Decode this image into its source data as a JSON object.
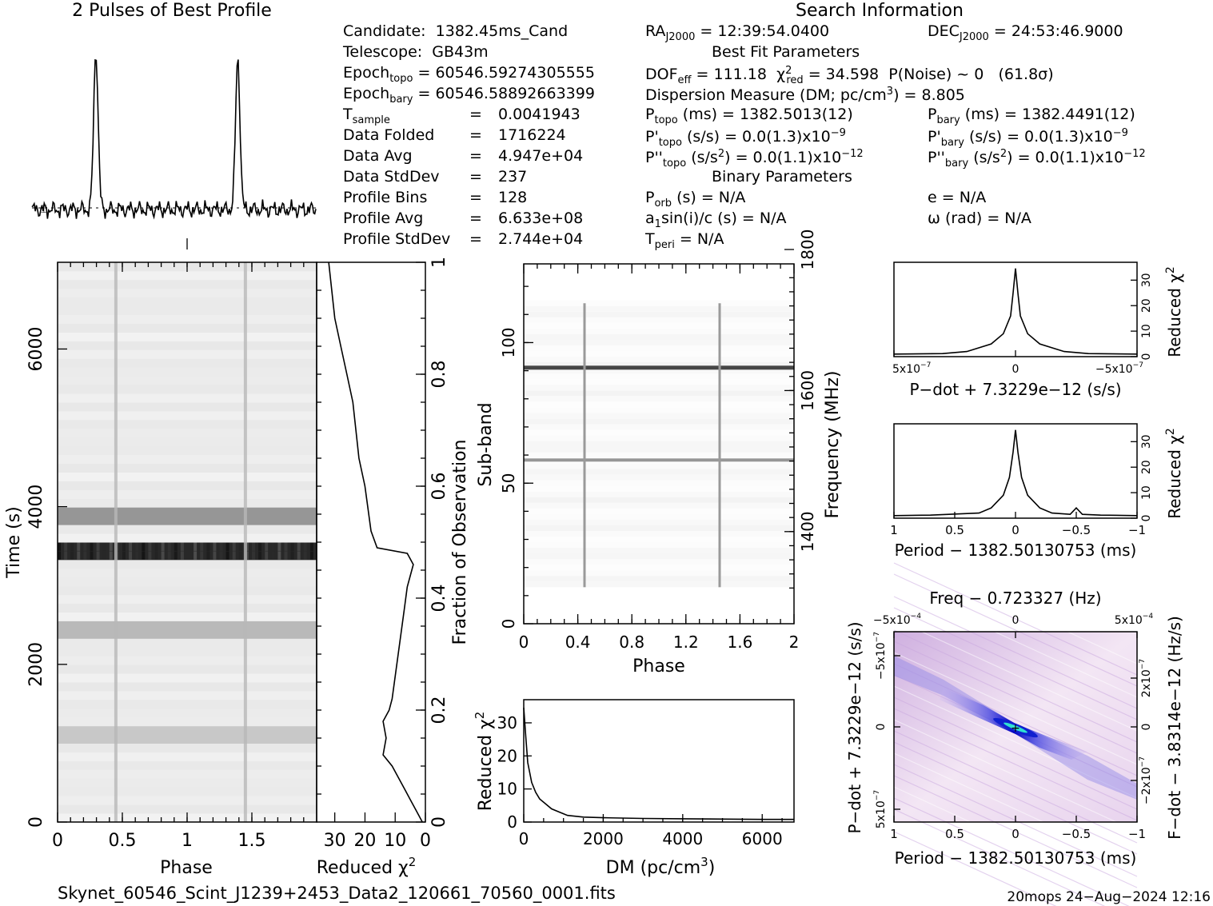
{
  "profile_title": "2 Pulses of Best Profile",
  "search_title": "Search Information",
  "candidate": {
    "candidate_label": "Candidate:",
    "candidate": "1382.45ms_Cand",
    "telescope_label": "Telescope:",
    "telescope": "GB43m",
    "epoch_topo": "60546.59274305555",
    "epoch_bary": "60546.58892663399",
    "t_sample": "0.0041943",
    "data_folded": "1716224",
    "data_avg": "4.947e+04",
    "data_stddev": "237",
    "profile_bins": "128",
    "profile_avg": "6.633e+08",
    "profile_stddev": "2.744e+04",
    "labels": {
      "epoch": "Epoch",
      "topo": "topo",
      "bary": "bary",
      "t": "T",
      "sample": "sample",
      "data_folded": "Data Folded",
      "data_avg": "Data Avg",
      "data_stddev": "Data StdDev",
      "profile_bins": "Profile Bins",
      "profile_avg": "Profile Avg",
      "profile_stddev": "Profile StdDev",
      "equals": "="
    }
  },
  "search": {
    "ra": "RA",
    "dec": "DEC",
    "j2000": "J2000",
    "ra_value": "= 12:39:54.0400",
    "dec_value": "= 24:53:46.9000",
    "best_fit_heading": "Best Fit Parameters",
    "dof": "DOF",
    "eff": "eff",
    "dof_value": "= 111.18",
    "chi": "χ",
    "red": "red",
    "chi2_value": "= 34.598",
    "pnoise": "P(Noise) ~ 0",
    "sigma": "(61.8σ)",
    "dm_text": "Dispersion Measure (DM; pc/cm",
    "dm_value": ") = 8.805",
    "p_topo": "(ms) =  1382.5013(12)",
    "p_bary": "(ms) =  1382.4491(12)",
    "pd_topo": "(s/s) = 0.0(1.3)x10",
    "pd_bary": "(s/s) = 0.0(1.3)x10",
    "pd_exp": "−9",
    "pdd_topo": "(s/s",
    "pdd_value": ") = 0.0(1.1)x10",
    "pdd_exp": "−12",
    "binary_heading": "Binary Parameters",
    "porb": "(s) = N/A",
    "a1sini": "sin(i)/c (s) = N/A",
    "tperi": "= N/A",
    "ecc": "e = N/A",
    "omega": "ω (rad) = N/A",
    "sym_p": "P",
    "sym_pd": "P'",
    "sym_pdd": "P''",
    "sym_a": "a",
    "one": "1",
    "two": "2",
    "three": "3",
    "orb": "orb",
    "peri": "peri",
    "t_sym": "T"
  },
  "footer": {
    "filename": "Skynet_60546_Scint_J1239+2453_Data2_120661_70560_0001.fits",
    "stamp": "20mops 24−Aug−2024 12:16"
  },
  "chart_data": [
    {
      "id": "pulse-profile",
      "type": "line",
      "title": "2 Pulses of Best Profile",
      "xlabel": "",
      "ylabel": "",
      "phase_range": [
        0,
        2
      ],
      "peaks": [
        {
          "phase": 0.45,
          "amplitude": 1.0
        },
        {
          "phase": 1.45,
          "amplitude": 1.0
        }
      ]
    },
    {
      "id": "time-phase",
      "type": "heatmap",
      "xlabel": "Phase",
      "ylabel": "Time (s)",
      "xlim": [
        0,
        2
      ],
      "ylim": [
        0,
        7100
      ],
      "x_ticks": [
        "0",
        "0.5",
        "1",
        "1.5"
      ],
      "y_ticks": [
        "0",
        "2000",
        "4000",
        "6000"
      ],
      "pulse_phases": [
        0.45,
        1.45
      ],
      "bright_rows_s": [
        3450,
        3850,
        2400,
        1100
      ]
    },
    {
      "id": "chi2-vs-time",
      "type": "line",
      "xlabel": "Reduced χ",
      "ylabel": "Fraction of Observation",
      "xlim": [
        36,
        0
      ],
      "ylim": [
        0,
        1
      ],
      "x_ticks": [
        "30",
        "20",
        "10",
        "0"
      ],
      "y_ticks": [
        "0",
        "0.2",
        "0.4",
        "0.6",
        "0.8",
        "1"
      ],
      "fraction": [
        0,
        0.02,
        0.04,
        0.06,
        0.08,
        0.1,
        0.12,
        0.15,
        0.18,
        0.2,
        0.22,
        0.26,
        0.3,
        0.34,
        0.38,
        0.42,
        0.44,
        0.46,
        0.48,
        0.49,
        0.52,
        0.56,
        0.6,
        0.65,
        0.7,
        0.75,
        0.8,
        0.85,
        0.9,
        0.95,
        1.0
      ],
      "chi2": [
        1,
        3,
        5,
        7,
        9,
        11,
        14,
        13,
        14,
        12,
        11,
        10,
        9,
        8,
        7,
        6,
        5,
        4,
        6,
        16,
        18,
        19,
        20,
        22,
        23,
        24,
        26,
        28,
        30,
        31,
        32
      ]
    },
    {
      "id": "subband-phase",
      "type": "heatmap",
      "xlabel": "Phase",
      "ylabel": "Sub-band",
      "y2label": "Frequency (MHz)",
      "xlim": [
        0,
        2
      ],
      "ylim": [
        0,
        128
      ],
      "y2lim": [
        1300,
        1800
      ],
      "x_ticks": [
        "0",
        "0.4",
        "0.8",
        "1.2",
        "1.6",
        "2"
      ],
      "y_ticks": [
        "0",
        "50",
        "100"
      ],
      "y2_ticks": [
        "1400",
        "1600",
        "1800"
      ],
      "pulse_phases": [
        0.45,
        1.45
      ],
      "rfi_subbands": [
        91,
        58
      ]
    },
    {
      "id": "dm-chi2",
      "type": "line",
      "xlabel": "DM (pc/cm",
      "ylabel": "Reduced χ",
      "xlim": [
        0,
        6800
      ],
      "ylim": [
        0,
        37
      ],
      "x_ticks": [
        "0",
        "2000",
        "4000",
        "6000"
      ],
      "y_ticks": [
        "0",
        "10",
        "20",
        "30"
      ],
      "x": [
        0,
        50,
        100,
        200,
        300,
        400,
        500,
        700,
        900,
        1100,
        1500,
        2000,
        3000,
        4000,
        5000,
        6000,
        6800
      ],
      "y": [
        34.6,
        26,
        18,
        12,
        9,
        7,
        6,
        4,
        3,
        2,
        1.5,
        1.3,
        1.1,
        1.0,
        0.9,
        0.8,
        0.8
      ]
    },
    {
      "id": "pdot-chi2",
      "type": "line",
      "xlabel": "P−dot + 7.3229e−12 (s/s)",
      "ylabel": "Reduced χ",
      "xlim": [
        5e-07,
        -5e-07
      ],
      "ylim": [
        0,
        37
      ],
      "x_ticks": [
        "5x10",
        "0",
        "−5x10"
      ],
      "x_tick_exp": "−7",
      "y_ticks": [
        "0",
        "10",
        "20",
        "30"
      ],
      "x": [
        5e-07,
        3e-07,
        2e-07,
        1e-07,
        5e-08,
        2e-08,
        1e-08,
        0,
        -1e-08,
        -2e-08,
        -5e-08,
        -1e-07,
        -2e-07,
        -3e-07,
        -5e-07
      ],
      "y": [
        1,
        1.2,
        2,
        5,
        9,
        16,
        25,
        34.6,
        25,
        16,
        9,
        5,
        2,
        1.2,
        1
      ]
    },
    {
      "id": "period-chi2",
      "type": "line",
      "xlabel": "Period − 1382.50130753 (ms)",
      "ylabel": "Reduced χ",
      "xlim": [
        1,
        -1
      ],
      "ylim": [
        0,
        37
      ],
      "x_ticks": [
        "1",
        "0.5",
        "0",
        "−0.5",
        "−1"
      ],
      "y_ticks": [
        "0",
        "10",
        "20",
        "30"
      ],
      "x": [
        1,
        0.7,
        0.3,
        0.2,
        0.1,
        0.05,
        0.02,
        0,
        -0.02,
        -0.05,
        -0.1,
        -0.2,
        -0.3,
        -0.45,
        -0.5,
        -0.55,
        -0.7,
        -1
      ],
      "y": [
        1,
        1.2,
        2,
        4,
        9,
        16,
        26,
        34.6,
        26,
        16,
        9,
        4,
        2,
        1.5,
        4,
        1.5,
        1.2,
        1
      ]
    },
    {
      "id": "p-pdot-plane",
      "type": "heatmap",
      "title": "Freq − 0.723327 (Hz)",
      "xlabel": "Period − 1382.50130753 (ms)",
      "ylabel": "P−dot + 7.3229e−12 (s/s)",
      "y2label": "F−dot − 3.8314e−12 (Hz/s)",
      "x_ticks": [
        "1",
        "0.5",
        "0",
        "−0.5",
        "−1"
      ],
      "top_ticks": [
        "−5x10",
        "0",
        "5x10"
      ],
      "top_tick_exp": "−4",
      "y_ticks": [
        "−5x10",
        "0",
        "5x10"
      ],
      "y_tick_exp": "−7",
      "y2_ticks": [
        "2x10",
        "0",
        "−2x10"
      ],
      "y2_tick_exp": "−7",
      "best_point": [
        0,
        0
      ]
    }
  ]
}
